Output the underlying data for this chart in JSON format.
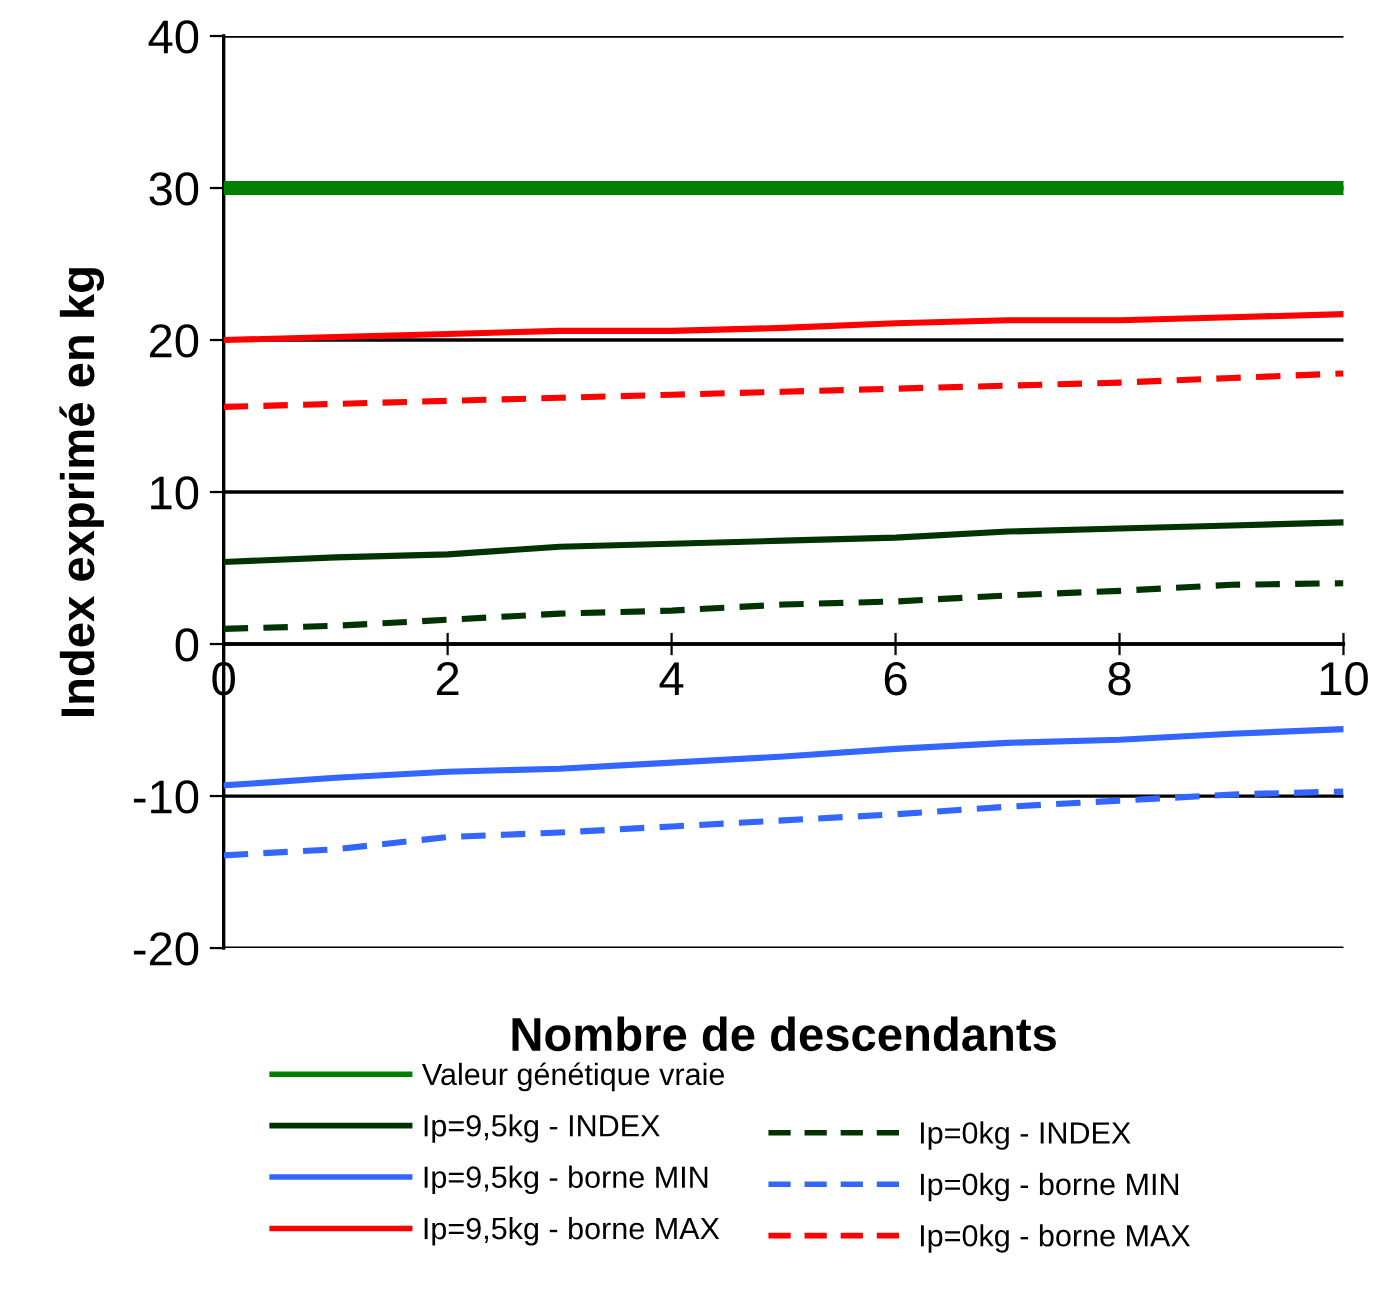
{
  "chart_data": {
    "type": "line",
    "xlabel": "Nombre de descendants",
    "ylabel": "Index exprimé en kg",
    "x": [
      0,
      1,
      2,
      3,
      4,
      5,
      6,
      7,
      8,
      9,
      10
    ],
    "xlim": [
      0,
      10
    ],
    "xticks": [
      0,
      2,
      4,
      6,
      8,
      10
    ],
    "ylim": [
      -20,
      40
    ],
    "yticks": [
      -20,
      -10,
      0,
      10,
      20,
      30,
      40
    ],
    "grid": "y",
    "legend": "bottom",
    "marker": "none",
    "series": [
      {
        "name": "Valeur génétique vraie",
        "color": "#008000",
        "line_style": "solid",
        "values": [
          30,
          30,
          30,
          30,
          30,
          30,
          30,
          30,
          30,
          30,
          30
        ]
      },
      {
        "name": "Ip=9,5kg - INDEX",
        "color": "#003300",
        "line_style": "solid",
        "values": [
          5.4,
          5.7,
          5.9,
          6.4,
          6.6,
          6.8,
          7.0,
          7.4,
          7.6,
          7.8,
          8.0
        ]
      },
      {
        "name": "Ip=9,5kg - borne MIN",
        "color": "#3366ff",
        "line_style": "solid",
        "values": [
          -9.3,
          -8.8,
          -8.4,
          -8.2,
          -7.8,
          -7.4,
          -6.9,
          -6.5,
          -6.3,
          -5.9,
          -5.6
        ]
      },
      {
        "name": "Ip=9,5kg - borne MAX",
        "color": "#ff0000",
        "line_style": "solid",
        "values": [
          20.0,
          20.2,
          20.4,
          20.6,
          20.6,
          20.8,
          21.1,
          21.3,
          21.3,
          21.5,
          21.7
        ]
      },
      {
        "name": "Ip=0kg - INDEX",
        "color": "#003300",
        "line_style": "dashed",
        "values": [
          1.0,
          1.2,
          1.6,
          2.0,
          2.2,
          2.6,
          2.8,
          3.2,
          3.5,
          3.9,
          4.0
        ]
      },
      {
        "name": "Ip=0kg - borne MIN",
        "color": "#3366ff",
        "line_style": "dashed",
        "values": [
          -13.9,
          -13.5,
          -12.7,
          -12.4,
          -12.0,
          -11.6,
          -11.2,
          -10.7,
          -10.3,
          -9.9,
          -9.7
        ]
      },
      {
        "name": "Ip=0kg - borne MAX",
        "color": "#ff0000",
        "line_style": "dashed",
        "values": [
          15.6,
          15.8,
          16.0,
          16.2,
          16.4,
          16.6,
          16.8,
          17.0,
          17.2,
          17.5,
          17.8
        ]
      }
    ]
  }
}
